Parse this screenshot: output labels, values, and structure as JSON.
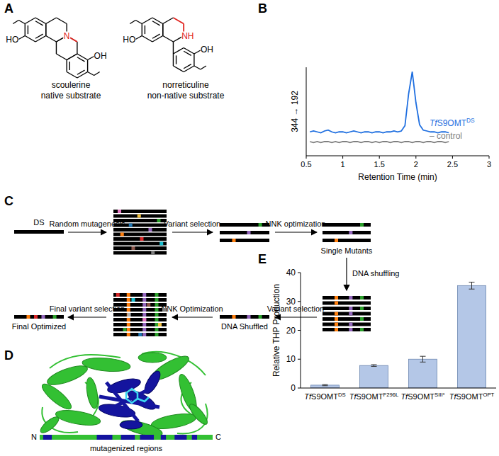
{
  "panel_labels": [
    "A",
    "B",
    "C",
    "D",
    "E"
  ],
  "structures": [
    {
      "name": "scoulerine",
      "role": "native substrate",
      "atoms": [
        "HO",
        "N",
        "OH"
      ]
    },
    {
      "name": "norreticuline",
      "role": "non-native substrate",
      "atoms": [
        "HO",
        "NH",
        "OH"
      ]
    }
  ],
  "diagram": {
    "nodes": [
      "DS",
      "Single Mutants",
      "DNA Shuffled",
      "Final Optimized"
    ],
    "edges": [
      "Random mutagenesis",
      "Variant selection",
      "NNK optimization",
      "DNA shuffling",
      "Variant selection",
      "NNK Optimization",
      "Final variant selection"
    ]
  },
  "protein": {
    "n_label": "N",
    "c_label": "C",
    "caption": "mutagenized regions"
  },
  "chart_data": [
    {
      "type": "line",
      "y_label": "344 → 192",
      "x_label": "Retention Time (min)",
      "x": [
        0.55,
        0.6,
        0.65,
        0.7,
        0.75,
        0.8,
        0.85,
        0.9,
        0.95,
        1,
        1.05,
        1.1,
        1.15,
        1.2,
        1.25,
        1.3,
        1.35,
        1.4,
        1.45,
        1.5,
        1.55,
        1.6,
        1.65,
        1.7,
        1.75,
        1.8,
        1.85,
        1.9,
        1.95,
        2,
        2.05,
        2.1,
        2.15,
        2.2,
        2.25,
        2.3,
        2.35,
        2.4,
        2.45
      ],
      "series": [
        {
          "name": "TfS9OMT",
          "name_superscript": "DS",
          "color": "#1f6fe0",
          "values": [
            27,
            28,
            27,
            26,
            28,
            29,
            27,
            26,
            27,
            27,
            26,
            27,
            28,
            27,
            26,
            27,
            27,
            26,
            27,
            27,
            26,
            27,
            27,
            28,
            27,
            28,
            34,
            70,
            95,
            60,
            35,
            29,
            28,
            27,
            27,
            26,
            27,
            27,
            26
          ]
        },
        {
          "name": "– control",
          "color": "#808080",
          "values": [
            16,
            15,
            16,
            15,
            16,
            16,
            15,
            16,
            15,
            16,
            16,
            15,
            16,
            16,
            15,
            16,
            16,
            15,
            16,
            15,
            16,
            16,
            15,
            16,
            16,
            15,
            16,
            16,
            15,
            16,
            16,
            15,
            16,
            16,
            15,
            16,
            16,
            15,
            16
          ]
        }
      ],
      "xlim": [
        0.5,
        3
      ],
      "xticks": [
        0.5,
        1,
        1.5,
        2,
        2.5,
        3
      ],
      "ylim": [
        0,
        100
      ],
      "tick_labels": "x"
    },
    {
      "type": "bar",
      "category_prefix": "TfS9OMT",
      "categories": [
        "DS",
        "F296L",
        "SIII*",
        "OPT"
      ],
      "values": [
        1,
        7.8,
        10,
        35.5
      ],
      "errors": [
        0.2,
        0.3,
        1.0,
        1.2
      ],
      "y_label": "Relative THP Production",
      "color": "#b4c7e7",
      "ylim": [
        0,
        40
      ],
      "yticks": [
        0,
        10,
        20,
        30,
        40
      ]
    }
  ]
}
